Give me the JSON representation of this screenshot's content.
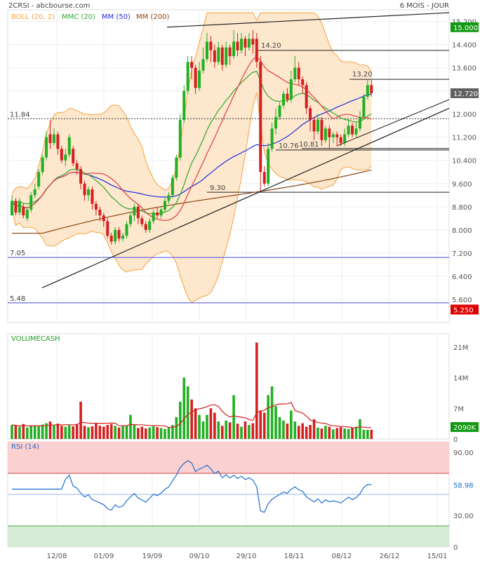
{
  "header": {
    "symbol_source": "2CRSI - abcbourse.com",
    "period": "6 MOIS - JOUR"
  },
  "colors": {
    "boll": "#f5a340",
    "boll_fill": "#fde3c4",
    "mmc20": "#2fa82f",
    "mm50": "#1f2ee0",
    "mm200": "#8b4513",
    "up": "#22b022",
    "down": "#d42020",
    "volume_ma": "#d42020",
    "rsi": "#1e6fd0",
    "box_green": "#119911",
    "box_red": "#dd0000",
    "box_gray": "#606060"
  },
  "chart_data": [
    {
      "type": "line",
      "panel": "price",
      "legend": [
        {
          "label": "BOLL (20, 2)",
          "color": "#f5a340"
        },
        {
          "label": "MMC (20)",
          "color": "#2fa82f"
        },
        {
          "label": "MM (50)",
          "color": "#1f2ee0"
        },
        {
          "label": "MM (200)",
          "color": "#8b4513"
        }
      ],
      "ylim": [
        4.8,
        15.6
      ],
      "yticks": [
        "15.200",
        "14.400",
        "13.600",
        "12.800",
        "12.000",
        "11.200",
        "10.400",
        "9.600",
        "8.800",
        "8.000",
        "7.200",
        "6.400",
        "5.600"
      ],
      "ytick_values": [
        15.2,
        14.4,
        13.6,
        12.8,
        12.0,
        11.2,
        10.4,
        9.6,
        8.8,
        8.0,
        7.2,
        6.4,
        5.6
      ],
      "x_labels": [
        "12/08",
        "01/09",
        "19/09",
        "09/10",
        "29/10",
        "18/11",
        "08/12",
        "26/12",
        "15/01"
      ],
      "x_label_pos": [
        81,
        148,
        217,
        284,
        351,
        419,
        487,
        555,
        623
      ],
      "price_labels": [
        {
          "text": "15.000",
          "value": 15.0,
          "color": "green"
        },
        {
          "text": "12.720",
          "value": 12.72,
          "color": "gray"
        },
        {
          "text": "5.250",
          "value": 5.25,
          "color": "red"
        }
      ],
      "annotations": [
        {
          "text": "14.20",
          "value": 14.2
        },
        {
          "text": "13.20",
          "value": 13.2
        },
        {
          "text": "11.84",
          "value": 11.84
        },
        {
          "text": "10.76",
          "value": 10.76
        },
        {
          "text": "10.81",
          "value": 10.81
        },
        {
          "text": "9.30",
          "value": 9.3
        },
        {
          "text": "7.05",
          "value": 7.05
        },
        {
          "text": "5.48",
          "value": 5.48
        }
      ],
      "support_lines": [
        {
          "value": 7.05
        },
        {
          "value": 5.48
        }
      ],
      "trendlines": [
        {
          "from": [
            60,
            6.0
          ],
          "to": [
            640,
            12.2
          ]
        },
        {
          "from": [
            238,
            15.0
          ],
          "to": [
            640,
            15.5
          ]
        }
      ],
      "candles": [
        [
          8.5,
          9.0,
          8.5,
          9.2
        ],
        [
          9.0,
          8.6,
          8.5,
          9.1
        ],
        [
          8.6,
          9.0,
          8.5,
          9.1
        ],
        [
          8.8,
          8.5,
          8.4,
          8.9
        ],
        [
          8.4,
          8.7,
          8.3,
          8.8
        ],
        [
          8.7,
          9.2,
          8.6,
          9.3
        ],
        [
          9.2,
          9.4,
          9.1,
          9.6
        ],
        [
          9.5,
          10.0,
          9.4,
          10.1
        ],
        [
          10.0,
          10.5,
          9.9,
          10.6
        ],
        [
          10.5,
          11.2,
          10.4,
          11.4
        ],
        [
          11.3,
          11.0,
          10.8,
          11.8
        ],
        [
          11.0,
          11.3,
          10.9,
          11.5
        ],
        [
          11.3,
          10.8,
          10.6,
          11.4
        ],
        [
          10.8,
          10.4,
          10.3,
          10.9
        ],
        [
          10.4,
          10.6,
          10.2,
          10.8
        ],
        [
          10.6,
          11.2,
          10.5,
          11.3
        ],
        [
          10.8,
          10.3,
          10.2,
          10.9
        ],
        [
          10.3,
          10.1,
          9.9,
          10.4
        ],
        [
          10.1,
          9.6,
          9.4,
          10.2
        ],
        [
          9.6,
          9.2,
          9.0,
          9.7
        ],
        [
          9.2,
          9.4,
          9.0,
          9.5
        ],
        [
          9.4,
          8.9,
          8.7,
          9.5
        ],
        [
          8.9,
          8.7,
          8.5,
          9.0
        ],
        [
          8.7,
          8.5,
          8.3,
          8.8
        ],
        [
          8.5,
          8.3,
          8.1,
          8.6
        ],
        [
          8.3,
          7.8,
          7.7,
          8.4
        ],
        [
          7.8,
          7.6,
          7.5,
          7.9
        ],
        [
          7.6,
          8.0,
          7.5,
          8.1
        ],
        [
          8.0,
          7.7,
          7.6,
          8.1
        ],
        [
          7.7,
          7.8,
          7.6,
          7.9
        ],
        [
          7.8,
          8.2,
          7.7,
          8.3
        ],
        [
          8.2,
          8.5,
          8.1,
          8.6
        ],
        [
          8.5,
          8.8,
          8.3,
          8.9
        ],
        [
          8.8,
          8.4,
          8.2,
          8.9
        ],
        [
          8.4,
          8.2,
          8.1,
          8.5
        ],
        [
          8.2,
          8.0,
          7.9,
          8.3
        ],
        [
          8.0,
          8.3,
          7.9,
          8.4
        ],
        [
          8.3,
          8.6,
          8.2,
          8.7
        ],
        [
          8.6,
          8.5,
          8.4,
          8.8
        ],
        [
          8.5,
          8.7,
          8.4,
          8.8
        ],
        [
          8.7,
          9.0,
          8.6,
          9.1
        ],
        [
          9.0,
          9.2,
          8.9,
          9.3
        ],
        [
          9.2,
          9.8,
          9.1,
          9.9
        ],
        [
          9.8,
          10.5,
          9.7,
          10.6
        ],
        [
          10.5,
          11.8,
          10.4,
          12.0
        ],
        [
          11.8,
          12.8,
          11.7,
          13.0
        ],
        [
          12.8,
          13.8,
          12.7,
          14.0
        ],
        [
          13.8,
          13.6,
          13.2,
          14.0
        ],
        [
          13.6,
          12.9,
          12.7,
          13.7
        ],
        [
          12.9,
          13.5,
          12.8,
          13.8
        ],
        [
          13.5,
          13.9,
          13.4,
          14.3
        ],
        [
          13.9,
          14.5,
          13.8,
          14.8
        ],
        [
          14.5,
          14.2,
          13.8,
          14.7
        ],
        [
          14.2,
          13.8,
          13.6,
          14.4
        ],
        [
          13.8,
          14.3,
          13.7,
          14.5
        ],
        [
          14.3,
          13.7,
          13.5,
          14.4
        ],
        [
          13.7,
          14.3,
          13.6,
          14.5
        ],
        [
          14.3,
          14.0,
          13.7,
          14.4
        ],
        [
          14.0,
          14.5,
          13.9,
          14.9
        ],
        [
          14.5,
          14.2,
          14.0,
          14.8
        ],
        [
          14.2,
          14.6,
          14.1,
          14.8
        ],
        [
          14.6,
          14.3,
          14.0,
          14.7
        ],
        [
          14.3,
          14.6,
          14.2,
          14.8
        ],
        [
          14.6,
          14.4,
          14.1,
          14.9
        ],
        [
          14.6,
          13.8,
          13.6,
          14.8
        ],
        [
          13.8,
          10.0,
          9.3,
          14.0
        ],
        [
          10.0,
          9.6,
          9.5,
          10.2
        ],
        [
          9.6,
          10.8,
          9.5,
          11.0
        ],
        [
          10.8,
          11.5,
          10.7,
          11.7
        ],
        [
          11.5,
          11.9,
          11.3,
          12.2
        ],
        [
          11.9,
          12.3,
          11.8,
          12.4
        ],
        [
          12.3,
          12.7,
          12.2,
          12.8
        ],
        [
          12.7,
          12.5,
          12.4,
          12.9
        ],
        [
          12.5,
          13.2,
          12.4,
          13.5
        ],
        [
          13.2,
          13.6,
          13.1,
          14.0
        ],
        [
          13.6,
          13.2,
          13.0,
          13.8
        ],
        [
          13.2,
          13.0,
          12.7,
          13.3
        ],
        [
          13.0,
          12.2,
          12.0,
          13.1
        ],
        [
          12.2,
          11.8,
          11.4,
          12.3
        ],
        [
          11.8,
          11.4,
          11.1,
          11.9
        ],
        [
          11.4,
          11.8,
          11.3,
          12.0
        ],
        [
          11.8,
          11.1,
          10.9,
          11.9
        ],
        [
          11.1,
          11.5,
          11.0,
          11.6
        ],
        [
          11.5,
          11.2,
          10.8,
          11.6
        ],
        [
          11.2,
          11.3,
          11.0,
          11.4
        ],
        [
          11.3,
          11.2,
          10.9,
          11.4
        ],
        [
          11.2,
          11.0,
          10.9,
          11.3
        ],
        [
          11.0,
          11.3,
          10.9,
          11.5
        ],
        [
          11.3,
          11.6,
          11.2,
          11.8
        ],
        [
          11.6,
          11.3,
          11.2,
          11.7
        ],
        [
          11.3,
          11.5,
          11.2,
          11.7
        ],
        [
          11.5,
          11.9,
          11.4,
          12.1
        ],
        [
          11.9,
          12.6,
          11.8,
          12.7
        ],
        [
          12.6,
          13.0,
          12.5,
          13.2
        ],
        [
          13.0,
          12.72,
          12.6,
          13.2
        ]
      ]
    },
    {
      "type": "bar",
      "panel": "volume",
      "label": "VOLUMECASH",
      "ylim": [
        0,
        24000000
      ],
      "yticks": [
        "21M",
        "14M",
        "7M",
        "0"
      ],
      "ytick_values": [
        21000000,
        14000000,
        7000000,
        0
      ],
      "last_label": "2090K",
      "last_value": 2090000,
      "values": [
        3.2,
        3.0,
        2.8,
        3.4,
        2.6,
        3.1,
        3.0,
        2.9,
        3.3,
        3.6,
        4.0,
        3.2,
        3.5,
        3.0,
        2.8,
        3.1,
        2.9,
        3.4,
        8.5,
        3.0,
        2.7,
        2.9,
        3.5,
        3.0,
        2.8,
        3.2,
        3.4,
        3.0,
        2.6,
        2.9,
        3.1,
        5.5,
        3.3,
        2.5,
        2.8,
        2.4,
        2.6,
        2.9,
        2.7,
        2.5,
        2.3,
        2.6,
        3.2,
        5.0,
        8.5,
        14.0,
        12.0,
        9.0,
        7.0,
        5.5,
        4.0,
        5.5,
        7.0,
        6.0,
        4.0,
        3.0,
        4.2,
        3.8,
        10.0,
        3.5,
        2.8,
        4.0,
        3.2,
        3.6,
        22.0,
        6.5,
        6.0,
        10.0,
        12.0,
        7.5,
        5.0,
        4.2,
        3.5,
        6.5,
        4.0,
        3.0,
        3.6,
        2.8,
        3.2,
        4.5,
        2.6,
        2.4,
        3.0,
        2.8,
        2.2,
        2.5,
        2.7,
        2.4,
        2.3,
        2.6,
        2.8,
        4.5,
        2.1,
        2.09,
        2.09
      ],
      "values_scale": "M",
      "values_up": [
        1,
        0,
        1,
        0,
        1,
        1,
        1,
        1,
        1,
        1,
        0,
        1,
        0,
        0,
        1,
        1,
        0,
        0,
        0,
        0,
        1,
        0,
        0,
        0,
        0,
        0,
        0,
        1,
        0,
        1,
        1,
        1,
        1,
        0,
        0,
        0,
        1,
        1,
        0,
        1,
        1,
        1,
        1,
        1,
        1,
        1,
        1,
        0,
        0,
        1,
        1,
        1,
        0,
        0,
        1,
        0,
        1,
        0,
        1,
        0,
        1,
        0,
        1,
        0,
        0,
        0,
        0,
        1,
        1,
        1,
        1,
        1,
        0,
        1,
        1,
        0,
        0,
        0,
        0,
        0,
        1,
        0,
        1,
        0,
        1,
        0,
        0,
        1,
        1,
        0,
        1,
        1,
        1,
        1,
        0
      ]
    },
    {
      "type": "line",
      "panel": "rsi",
      "label": "RSI (14)",
      "ylim": [
        0,
        100
      ],
      "yticks": [
        "90.00",
        "30.00",
        "0"
      ],
      "ytick_values": [
        90,
        30,
        0
      ],
      "reference_lines": [
        70,
        50,
        20
      ],
      "last_label": "58.98",
      "last_value": 58.98
    }
  ]
}
